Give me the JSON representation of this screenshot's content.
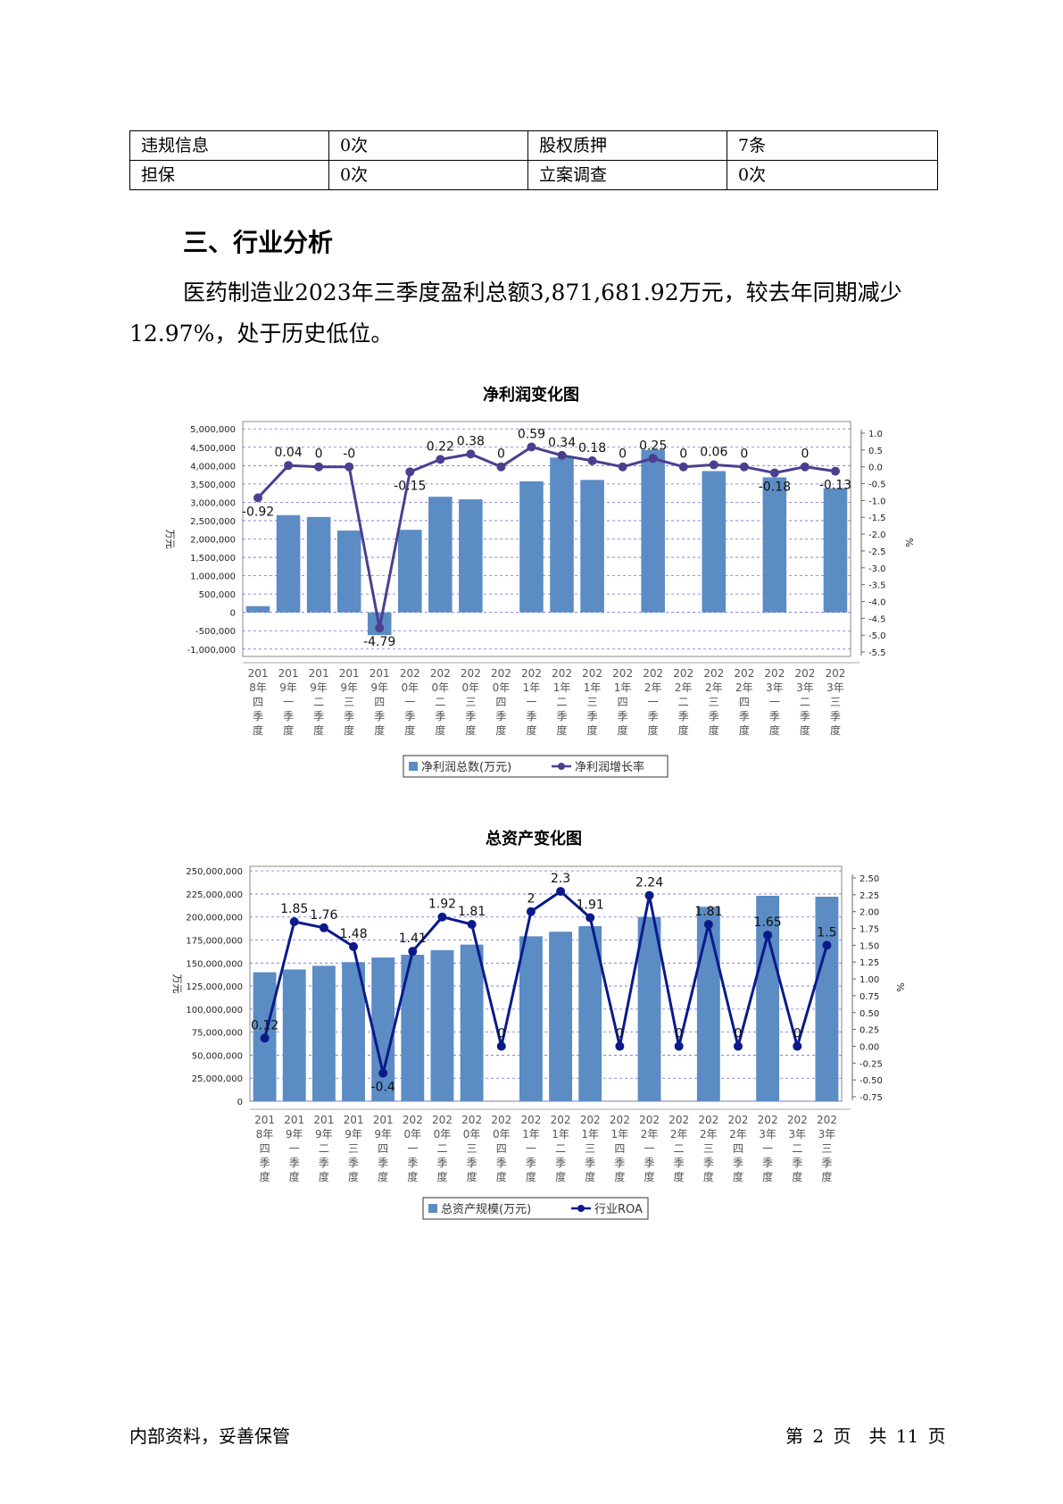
{
  "table": {
    "rows": [
      [
        "违规信息",
        "0次",
        "股权质押",
        "7条"
      ],
      [
        "担保",
        "0次",
        "立案调查",
        "0次"
      ]
    ]
  },
  "section_title": "三、行业分析",
  "paragraph": "医药制造业2023年三季度盈利总额3,871,681.92万元，较去年同期减少12.97%，处于历史低位。",
  "footer": {
    "left": "内部资料，妥善保管",
    "right": "第 2 页　共 11 页"
  },
  "colors": {
    "bar": "#5b8cc4",
    "line1": "#4a3f8f",
    "line2": "#0a1a8a",
    "grid": "#6e6ee0"
  },
  "charts": [
    {
      "id": "net-profit",
      "chart_data": {
        "type": "bar",
        "title": "净利润变化图",
        "ylabel": "万元",
        "y2label": "%",
        "categories": [
          [
            "201",
            "8年",
            "四",
            "季",
            "度"
          ],
          [
            "201",
            "9年",
            "一",
            "季",
            "度"
          ],
          [
            "201",
            "9年",
            "二",
            "季",
            "度"
          ],
          [
            "201",
            "9年",
            "三",
            "季",
            "度"
          ],
          [
            "201",
            "9年",
            "四",
            "季",
            "度"
          ],
          [
            "202",
            "0年",
            "一",
            "季",
            "度"
          ],
          [
            "202",
            "0年",
            "二",
            "季",
            "度"
          ],
          [
            "202",
            "0年",
            "三",
            "季",
            "度"
          ],
          [
            "202",
            "0年",
            "四",
            "季",
            "度"
          ],
          [
            "202",
            "1年",
            "一",
            "季",
            "度"
          ],
          [
            "202",
            "1年",
            "二",
            "季",
            "度"
          ],
          [
            "202",
            "1年",
            "三",
            "季",
            "度"
          ],
          [
            "202",
            "1年",
            "四",
            "季",
            "度"
          ],
          [
            "202",
            "2年",
            "一",
            "季",
            "度"
          ],
          [
            "202",
            "2年",
            "二",
            "季",
            "度"
          ],
          [
            "202",
            "2年",
            "三",
            "季",
            "度"
          ],
          [
            "202",
            "2年",
            "四",
            "季",
            "度"
          ],
          [
            "202",
            "3年",
            "一",
            "季",
            "度"
          ],
          [
            "202",
            "3年",
            "二",
            "季",
            "度"
          ],
          [
            "202",
            "3年",
            "三",
            "季",
            "度"
          ]
        ],
        "series": [
          {
            "name": "净利润总数(万元)",
            "kind": "bar",
            "values": [
              170000,
              2650000,
              2600000,
              2230000,
              -620000,
              2250000,
              3150000,
              3080000,
              0,
              3570000,
              4220000,
              3610000,
              0,
              4430000,
              0,
              3850000,
              0,
              3680000,
              0,
              3380000
            ]
          },
          {
            "name": "净利润增长率",
            "kind": "line",
            "values": [
              -0.92,
              0.04,
              0,
              0,
              -4.79,
              -0.15,
              0.22,
              0.38,
              0,
              0.59,
              0.34,
              0.18,
              0,
              0.25,
              0,
              0.06,
              0,
              -0.18,
              0,
              -0.13
            ],
            "labels": [
              "-0.92",
              "0.04",
              "0",
              "-0",
              "-4.79",
              "-0.15",
              "0.22",
              "0.38",
              "0",
              "0.59",
              "0.34",
              "0.18",
              "0",
              "0.25",
              "0",
              "0.06",
              "0",
              "-0.18",
              "0",
              "-0.13"
            ]
          }
        ],
        "ylim": [
          -1200000,
          5200000
        ],
        "yticks": [
          5000000,
          4500000,
          4000000,
          3500000,
          3000000,
          2500000,
          2000000,
          1500000,
          1000000,
          500000,
          0,
          -500000,
          -1000000
        ],
        "ytick_labels": [
          "5,000,000",
          "4,500,000",
          "4,000,000",
          "3,500,000",
          "3,000,000",
          "2,500,000",
          "2,000,000",
          "1,500,000",
          "1,000,000",
          "500,000",
          "0",
          "-500,000",
          "-1,000,000"
        ],
        "y2lim": [
          -5.5,
          1.0
        ],
        "y2ticks": [
          1.0,
          0.5,
          0.0,
          -0.5,
          -1.0,
          -1.5,
          -2.0,
          -2.5,
          -3.0,
          -3.5,
          -4.0,
          -4.5,
          -5.0,
          -5.5
        ],
        "y2tick_labels": [
          "1.0",
          "0.5",
          "0.0",
          "-0.5",
          "-1.0",
          "-1.5",
          "-2.0",
          "-2.5",
          "-3.0",
          "-3.5",
          "-4.0",
          "-4.5",
          "-5.0",
          "-5.5"
        ],
        "grid": true,
        "legend": "bottom"
      }
    },
    {
      "id": "total-assets",
      "chart_data": {
        "type": "bar",
        "title": "总资产变化图",
        "ylabel": "万元",
        "y2label": "%",
        "categories": [
          [
            "201",
            "8年",
            "四",
            "季",
            "度"
          ],
          [
            "201",
            "9年",
            "一",
            "季",
            "度"
          ],
          [
            "201",
            "9年",
            "二",
            "季",
            "度"
          ],
          [
            "201",
            "9年",
            "三",
            "季",
            "度"
          ],
          [
            "201",
            "9年",
            "四",
            "季",
            "度"
          ],
          [
            "202",
            "0年",
            "一",
            "季",
            "度"
          ],
          [
            "202",
            "0年",
            "二",
            "季",
            "度"
          ],
          [
            "202",
            "0年",
            "三",
            "季",
            "度"
          ],
          [
            "202",
            "0年",
            "四",
            "季",
            "度"
          ],
          [
            "202",
            "1年",
            "一",
            "季",
            "度"
          ],
          [
            "202",
            "1年",
            "二",
            "季",
            "度"
          ],
          [
            "202",
            "1年",
            "三",
            "季",
            "度"
          ],
          [
            "202",
            "1年",
            "四",
            "季",
            "度"
          ],
          [
            "202",
            "2年",
            "一",
            "季",
            "度"
          ],
          [
            "202",
            "2年",
            "二",
            "季",
            "度"
          ],
          [
            "202",
            "2年",
            "三",
            "季",
            "度"
          ],
          [
            "202",
            "2年",
            "四",
            "季",
            "度"
          ],
          [
            "202",
            "3年",
            "一",
            "季",
            "度"
          ],
          [
            "202",
            "3年",
            "二",
            "季",
            "度"
          ],
          [
            "202",
            "3年",
            "三",
            "季",
            "度"
          ]
        ],
        "series": [
          {
            "name": "总资产规模(万元)",
            "kind": "bar",
            "values": [
              140000000,
              143000000,
              147000000,
              151000000,
              156000000,
              159000000,
              164000000,
              170000000,
              0,
              179000000,
              184000000,
              190000000,
              0,
              200000000,
              0,
              211000000,
              0,
              223000000,
              0,
              222000000
            ]
          },
          {
            "name": "行业ROA",
            "kind": "line",
            "values": [
              0.12,
              1.85,
              1.76,
              1.48,
              -0.4,
              1.41,
              1.92,
              1.81,
              0,
              2,
              2.3,
              1.91,
              0,
              2.24,
              0,
              1.81,
              0,
              1.65,
              0,
              1.5
            ],
            "labels": [
              "0.12",
              "1.85",
              "1.76",
              "1.48",
              "-0.4",
              "1.41",
              "1.92",
              "1.81",
              "0",
              "2",
              "2.3",
              "1.91",
              "0",
              "2.24",
              "0",
              "1.81",
              "0",
              "1.65",
              "0",
              "1.5"
            ]
          }
        ],
        "ylim": [
          0,
          255000000
        ],
        "yticks": [
          250000000,
          225000000,
          200000000,
          175000000,
          150000000,
          125000000,
          100000000,
          75000000,
          50000000,
          25000000,
          0
        ],
        "ytick_labels": [
          "250,000,000",
          "225,000,000",
          "200,000,000",
          "175,000,000",
          "150,000,000",
          "125,000,000",
          "100,000,000",
          "75,000,000",
          "50,000,000",
          "25,000,000",
          "0"
        ],
        "y2lim": [
          -0.75,
          2.5
        ],
        "y2ticks": [
          2.5,
          2.25,
          2.0,
          1.75,
          1.5,
          1.25,
          1.0,
          0.75,
          0.5,
          0.25,
          0.0,
          -0.25,
          -0.5,
          -0.75
        ],
        "y2tick_labels": [
          "2.50",
          "2.25",
          "2.00",
          "1.75",
          "1.50",
          "1.25",
          "1.00",
          "0.75",
          "0.50",
          "0.25",
          "0.00",
          "-0.25",
          "-0.50",
          "-0.75"
        ],
        "grid": true,
        "legend": "bottom"
      }
    }
  ]
}
